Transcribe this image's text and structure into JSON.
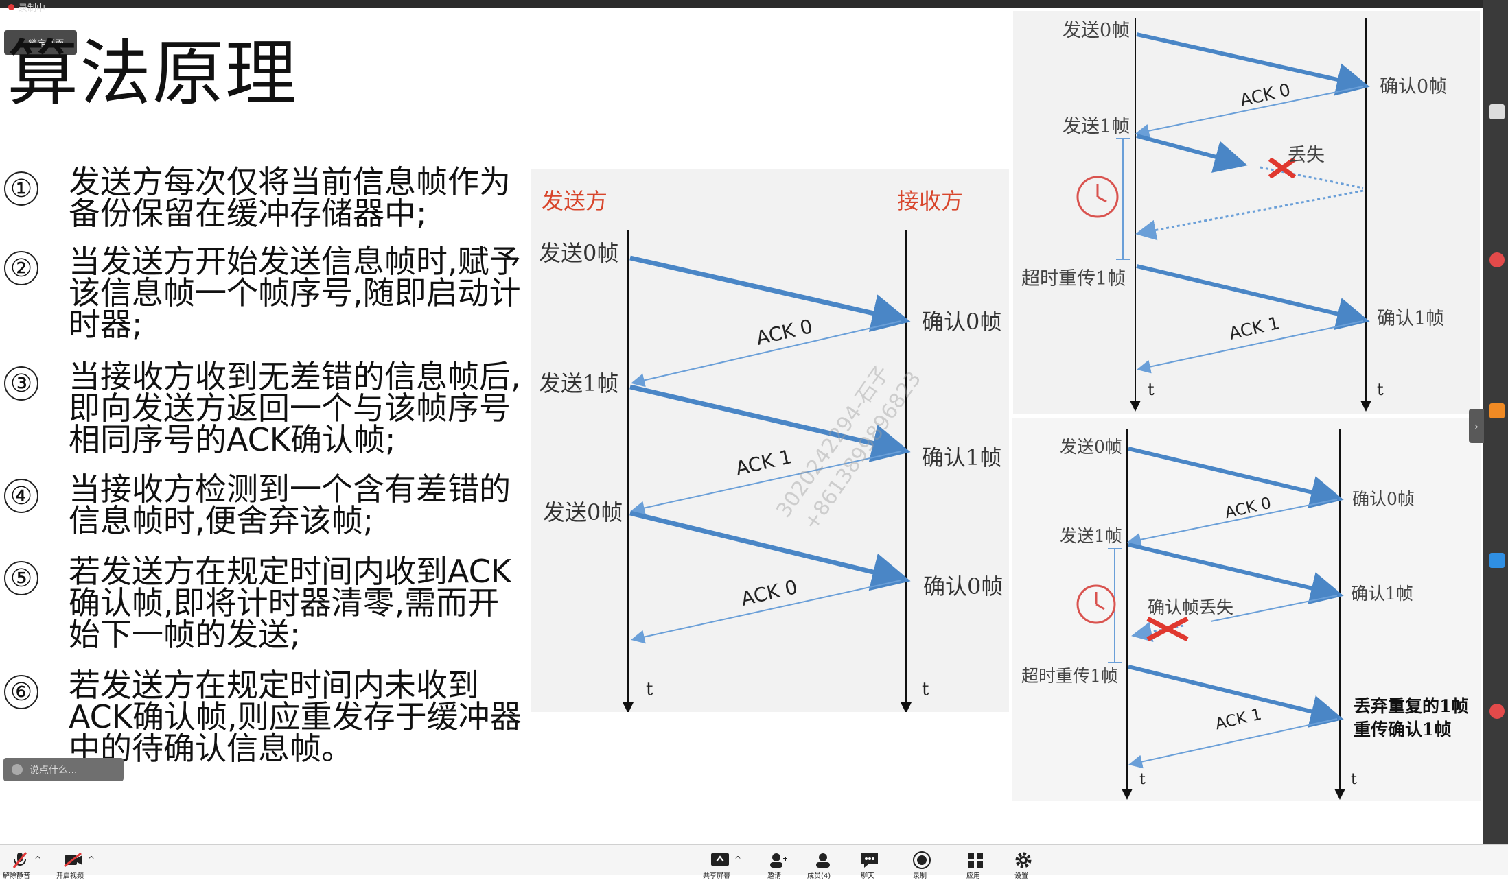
{
  "recording_label": "录制中",
  "lock_screen_label": "锁定画面",
  "slide": {
    "title": "算法原理",
    "steps": [
      {
        "num": "①",
        "text": "发送方每次仅将当前信息帧作为备份保留在缓冲存储器中;"
      },
      {
        "num": "②",
        "text": "当发送方开始发送信息帧时,赋予该信息帧一个帧序号,随即启动计时器;"
      },
      {
        "num": "③",
        "text": "当接收方收到无差错的信息帧后,即向发送方返回一个与该帧序号相同序号的ACK确认帧;"
      },
      {
        "num": "④",
        "text": "当接收方检测到一个含有差错的信息帧时,便舍弃该帧;"
      },
      {
        "num": "⑤",
        "text": "若发送方在规定时间内收到ACK确认帧,即将计时器清零,需而开始下一帧的发送;"
      },
      {
        "num": "⑥",
        "text": "若发送方在规定时间内未收到ACK确认帧,则应重发存于缓冲器中的待确认信息帧。"
      }
    ]
  },
  "comment_placeholder": "说点什么...",
  "diagram_main": {
    "sender": "发送方",
    "receiver": "接收方",
    "send0": "发送0帧",
    "send1": "发送1帧",
    "send0b": "发送0帧",
    "ack0": "ACK 0",
    "ack1": "ACK 1",
    "ack0b": "ACK 0",
    "confirm0": "确认0帧",
    "confirm1": "确认1帧",
    "confirm0b": "确认0帧",
    "t": "t"
  },
  "diagram_top_right": {
    "send0": "发送0帧",
    "ack0": "ACK 0",
    "confirm0": "确认0帧",
    "send1": "发送1帧",
    "lost": "丢失",
    "resend1": "超时重传1帧",
    "ack1": "ACK 1",
    "confirm1": "确认1帧",
    "t": "t"
  },
  "diagram_bottom_right": {
    "send0": "发送0帧",
    "ack0": "ACK 0",
    "confirm0": "确认0帧",
    "send1": "发送1帧",
    "confirm1": "确认1帧",
    "ack_lost": "确认帧丢失",
    "resend1": "超时重传1帧",
    "discard": "丢弃重复的1帧",
    "reconfirm": "重传确认1帧",
    "ack1": "ACK 1",
    "t": "t"
  },
  "watermark": [
    "3020242294-石子",
    "+8613899896823"
  ],
  "colors": {
    "arrow": "#4a86c6",
    "ack": "#6a9fd8",
    "red_label": "#d8452b",
    "lost_x": "#e0382f",
    "clock": "#d9534f"
  },
  "toolbar": {
    "items": [
      {
        "icon": "microphone-muted-icon",
        "label": "解除静音"
      },
      {
        "icon": "video-off-icon",
        "label": "开启视频"
      },
      {
        "icon": "share-screen-icon",
        "label": "共享屏幕"
      },
      {
        "icon": "invite-icon",
        "label": "邀请"
      },
      {
        "icon": "members-icon",
        "label": "成员(4)"
      },
      {
        "icon": "chat-icon",
        "label": "聊天"
      },
      {
        "icon": "record-icon",
        "label": "录制"
      },
      {
        "icon": "apps-icon",
        "label": "应用"
      },
      {
        "icon": "settings-icon",
        "label": "设置"
      }
    ]
  }
}
